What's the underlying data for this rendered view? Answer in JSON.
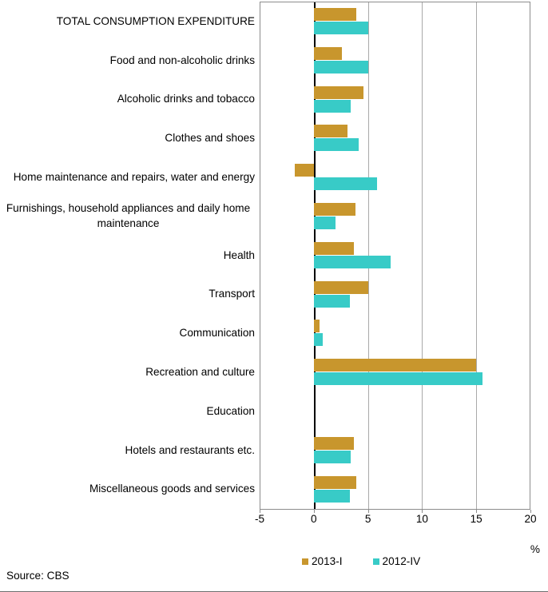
{
  "chart_data": {
    "type": "bar",
    "orientation": "horizontal",
    "title": "",
    "categories": [
      "TOTAL CONSUMPTION EXPENDITURE",
      "Food and non-alcoholic drinks",
      "Alcoholic drinks and tobacco",
      "Clothes and shoes",
      "Home maintenance and repairs, water and energy",
      "Furnishings, household appliances and daily home maintenance",
      "Health",
      "Transport",
      "Communication",
      "Recreation and culture",
      "Education",
      "Hotels and restaurants etc.",
      "Miscellaneous goods and services"
    ],
    "series": [
      {
        "name": "2013-I",
        "color": "#C8962D",
        "values": [
          3.9,
          2.6,
          4.6,
          3.1,
          -1.8,
          3.8,
          3.7,
          5.0,
          0.5,
          15.0,
          0.0,
          3.7,
          3.9
        ]
      },
      {
        "name": "2012-IV",
        "color": "#38CBC7",
        "values": [
          5.0,
          5.0,
          3.4,
          4.1,
          5.8,
          2.0,
          7.1,
          3.3,
          0.8,
          15.6,
          0.0,
          3.4,
          3.3
        ]
      }
    ],
    "xlim": [
      -5,
      20
    ],
    "x_ticks": [
      -5,
      0,
      5,
      10,
      15,
      20
    ],
    "x_unit": "%",
    "grid": "vertical-gridlines-on",
    "legend_position": "bottom"
  },
  "colors": {
    "gridline": "#a9a9a9",
    "axis_border": "#8c8c8c",
    "zero_line": "#000000",
    "background": "#ffffff"
  },
  "footer": {
    "source": "Source: CBS"
  }
}
